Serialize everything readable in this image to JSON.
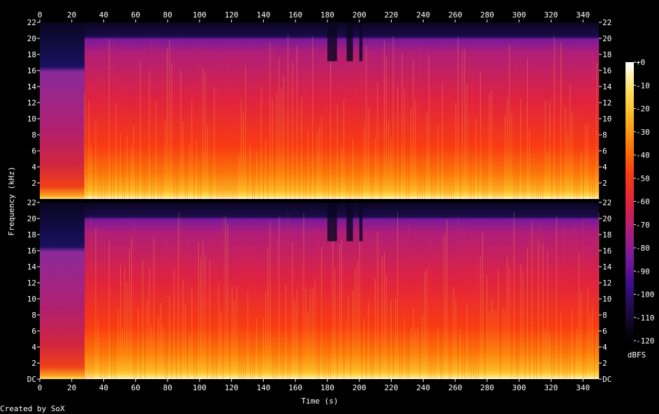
{
  "chart_data": {
    "type": "heatmap",
    "title": "",
    "xlabel": "Time (s)",
    "ylabel": "Frequency (kHz)",
    "xlim": [
      0,
      350
    ],
    "x_ticks": [
      "0",
      "20",
      "40",
      "60",
      "80",
      "100",
      "120",
      "140",
      "160",
      "180",
      "200",
      "220",
      "240",
      "260",
      "280",
      "300",
      "320",
      "340"
    ],
    "ylim_khz": [
      0,
      22
    ],
    "y_ticks": [
      "DC",
      "2",
      "4",
      "6",
      "8",
      "10",
      "12",
      "14",
      "16",
      "18",
      "20",
      "22"
    ],
    "channels": [
      {
        "channel": 1,
        "time_range_s": [
          0,
          350
        ],
        "freq_range_khz": [
          0,
          22
        ]
      },
      {
        "channel": 2,
        "time_range_s": [
          0,
          350
        ],
        "freq_range_khz": [
          0,
          22
        ]
      }
    ],
    "segments": [
      {
        "start_s": 0,
        "end_s": 28,
        "cutoff_khz": 16,
        "level_dbfs_below_cutoff": -70
      },
      {
        "start_s": 28,
        "end_s": 350,
        "cutoff_khz": 20,
        "level_dbfs_below_cutoff": -50
      }
    ],
    "colorbar": {
      "label": "dBFS",
      "range": [
        -120,
        0
      ],
      "ticks": [
        "+0",
        "-10",
        "-20",
        "-30",
        "-40",
        "-50",
        "-60",
        "-70",
        "-80",
        "-90",
        "-100",
        "-110",
        "-120"
      ]
    },
    "colors": {
      "background": "#000000",
      "text": "#ffffff",
      "scale": [
        "#000000",
        "#1c0a3e",
        "#3a0e86",
        "#7a1a9c",
        "#b01e78",
        "#e0233e",
        "#f83c12",
        "#fb7a08",
        "#fdb520",
        "#ffe060",
        "#ffffff"
      ]
    }
  },
  "footer": {
    "credit": "Created by SoX"
  }
}
